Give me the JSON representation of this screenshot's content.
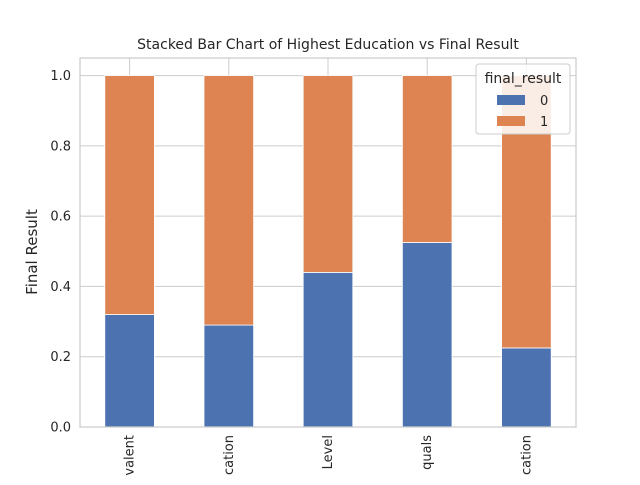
{
  "chart_data": {
    "type": "bar",
    "stacked": true,
    "title": "Stacked Bar Chart of Highest Education vs Final Result",
    "xlabel": "",
    "ylabel": "Final Result",
    "ylim": [
      0,
      1.05
    ],
    "yticks": [
      "0.0",
      "0.2",
      "0.4",
      "0.6",
      "0.8",
      "1.0"
    ],
    "categories": [
      "valent",
      "cation",
      "Level",
      "quals",
      "cation"
    ],
    "series": [
      {
        "name": "0",
        "color": "#4c72b0",
        "values": [
          0.32,
          0.29,
          0.44,
          0.525,
          0.225
        ]
      },
      {
        "name": "1",
        "color": "#dd8452",
        "values": [
          0.68,
          0.71,
          0.56,
          0.475,
          0.775
        ]
      }
    ],
    "grid": true,
    "legend": {
      "title": "final_result",
      "position": "top-right"
    }
  }
}
